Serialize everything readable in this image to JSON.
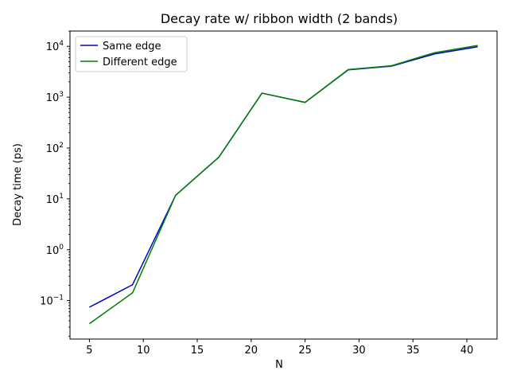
{
  "chart_data": {
    "type": "line",
    "title": "Decay rate w/ ribbon width (2 bands)",
    "xlabel": "N",
    "ylabel": "Decay time (ps)",
    "xscale": "linear",
    "yscale": "log",
    "xlim": [
      3.2,
      42.8
    ],
    "ylim": [
      0.0175,
      20000
    ],
    "xticks": [
      5,
      10,
      15,
      20,
      25,
      30,
      35,
      40
    ],
    "yticks": [
      {
        "value": 0.1,
        "base": "10",
        "exp": "−1"
      },
      {
        "value": 1,
        "base": "10",
        "exp": "0"
      },
      {
        "value": 10,
        "base": "10",
        "exp": "1"
      },
      {
        "value": 100,
        "base": "10",
        "exp": "2"
      },
      {
        "value": 1000,
        "base": "10",
        "exp": "3"
      },
      {
        "value": 10000,
        "base": "10",
        "exp": "4"
      }
    ],
    "x": [
      5,
      9,
      13,
      17,
      21,
      25,
      29,
      33,
      37,
      41
    ],
    "series": [
      {
        "name": "Same edge",
        "color": "#0000cc",
        "values": [
          0.074,
          0.205,
          11.8,
          66,
          1200,
          790,
          3450,
          4080,
          7100,
          9800
        ]
      },
      {
        "name": "Different edge",
        "color": "#008000",
        "values": [
          0.035,
          0.142,
          11.8,
          66,
          1200,
          790,
          3500,
          4150,
          7500,
          10400
        ]
      }
    ],
    "grid": false,
    "legend": "top-left"
  }
}
